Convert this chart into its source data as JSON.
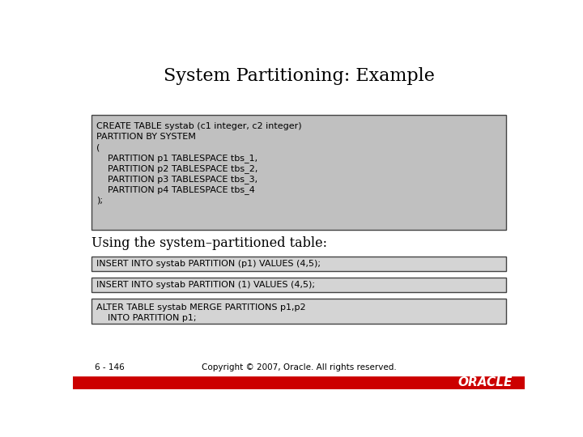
{
  "title": "System Partitioning: Example",
  "title_fontsize": 16,
  "title_font": "DejaVu Serif",
  "bg_color": "#ffffff",
  "box1_color": "#c0c0c0",
  "box2_color": "#d4d4d4",
  "box3_color": "#d4d4d4",
  "box4_color": "#d4d4d4",
  "code_font": "Courier New",
  "code_fontsize": 8.0,
  "label_fontsize": 11.5,
  "label_font": "DejaVu Serif",
  "footer_left": "6 - 146",
  "footer_center": "Copyright © 2007, Oracle. All rights reserved.",
  "footer_bar_color": "#cc0000",
  "oracle_text": "ORACLE",
  "box1_lines": [
    "CREATE TABLE systab (c1 integer, c2 integer)",
    "PARTITION BY SYSTEM",
    "(",
    "    PARTITION p1 TABLESPACE tbs_1,",
    "    PARTITION p2 TABLESPACE tbs_2,",
    "    PARTITION p3 TABLESPACE tbs_3,",
    "    PARTITION p4 TABLESPACE tbs_4",
    ");"
  ],
  "label_text": "Using the system–partitioned table:",
  "box2_text": "INSERT INTO systab PARTITION (p1) VALUES (4,5);",
  "box3_text": "INSERT INTO systab PARTITION (1) VALUES (4,5);",
  "box4_lines": [
    "ALTER TABLE systab MERGE PARTITIONS p1,p2",
    "    INTO PARTITION p1;"
  ]
}
